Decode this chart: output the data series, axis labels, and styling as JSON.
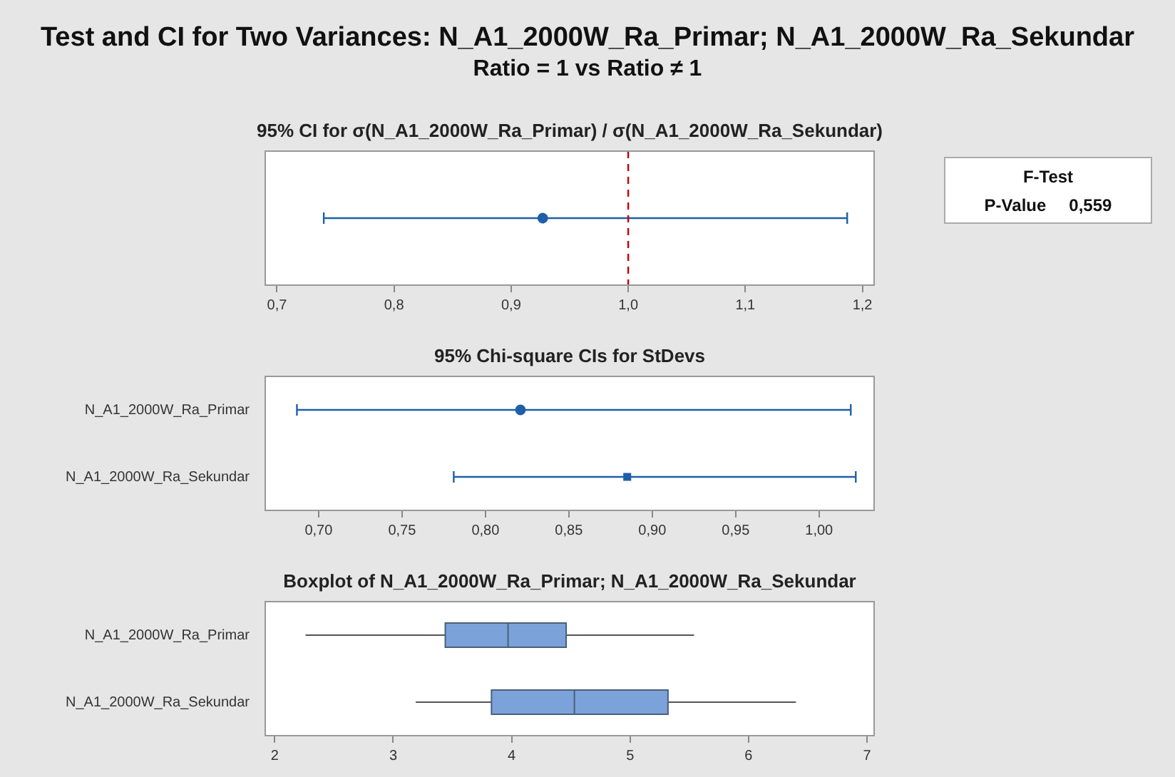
{
  "chart_data": [
    {
      "type": "other",
      "title": "Test and CI for Two Variances: N_A1_2000W_Ra_Primar; N_A1_2000W_Ra_Sekundar",
      "subtitle": "Ratio = 1 vs Ratio ≠ 1"
    },
    {
      "type": "scatter",
      "title": "95% CI for σ(N_A1_2000W_Ra_Primar) / σ(N_A1_2000W_Ra_Sekundar)",
      "orientation": "horizontal",
      "categories": [
        null
      ],
      "values": [
        0.927
      ],
      "errors": [
        [
          0.74,
          1.187
        ]
      ],
      "color": "#1f5fa8",
      "marker": "circle",
      "xlim": [
        0.69,
        1.21
      ],
      "xticks": [
        {
          "value": 0.7,
          "label": "0,7"
        },
        {
          "value": 0.8,
          "label": "0,8"
        },
        {
          "value": 0.9,
          "label": "0,9"
        },
        {
          "value": 1.0,
          "label": "1,0"
        },
        {
          "value": 1.1,
          "label": "1,1"
        },
        {
          "value": 1.2,
          "label": "1,2"
        }
      ],
      "ref_lines": [
        {
          "axis": "x",
          "value": 1.0,
          "color": "#c00000",
          "line_style": "dashed"
        }
      ],
      "tick_labels": "x"
    },
    {
      "type": "scatter",
      "title": "95% Chi-square CIs for StDevs",
      "orientation": "horizontal",
      "categories": [
        "N_A1_2000W_Ra_Primar",
        "N_A1_2000W_Ra_Sekundar"
      ],
      "series": [
        {
          "color": "#1f5fa8",
          "marker": "circle",
          "values": [
            0.821,
            null
          ],
          "errors": [
            [
              0.687,
              1.019
            ],
            null
          ]
        },
        {
          "color": "#1f5fa8",
          "marker": "square",
          "values": [
            null,
            0.885
          ],
          "errors": [
            null,
            [
              0.781,
              1.022
            ]
          ]
        }
      ],
      "xlim": [
        0.668,
        1.033
      ],
      "xticks": [
        {
          "value": 0.7,
          "label": "0,70"
        },
        {
          "value": 0.75,
          "label": "0,75"
        },
        {
          "value": 0.8,
          "label": "0,80"
        },
        {
          "value": 0.85,
          "label": "0,85"
        },
        {
          "value": 0.9,
          "label": "0,90"
        },
        {
          "value": 0.95,
          "label": "0,95"
        },
        {
          "value": 1.0,
          "label": "1,00"
        }
      ]
    },
    {
      "type": "box",
      "title": "Boxplot of N_A1_2000W_Ra_Primar; N_A1_2000W_Ra_Sekundar",
      "orientation": "horizontal",
      "categories": [
        "N_A1_2000W_Ra_Primar",
        "N_A1_2000W_Ra_Sekundar"
      ],
      "color": "#7ba3d9",
      "boxes": [
        {
          "low": 2.26,
          "q1": 3.44,
          "median": 3.97,
          "q3": 4.46,
          "high": 5.54
        },
        {
          "low": 3.19,
          "q1": 3.83,
          "median": 4.53,
          "q3": 5.32,
          "high": 6.4
        }
      ],
      "xlim": [
        1.92,
        7.06
      ],
      "xticks": [
        2,
        3,
        4,
        5,
        6,
        7
      ]
    },
    {
      "type": "other",
      "title": "F-Test",
      "annotations": [
        "P-Value",
        "0,559"
      ]
    }
  ]
}
